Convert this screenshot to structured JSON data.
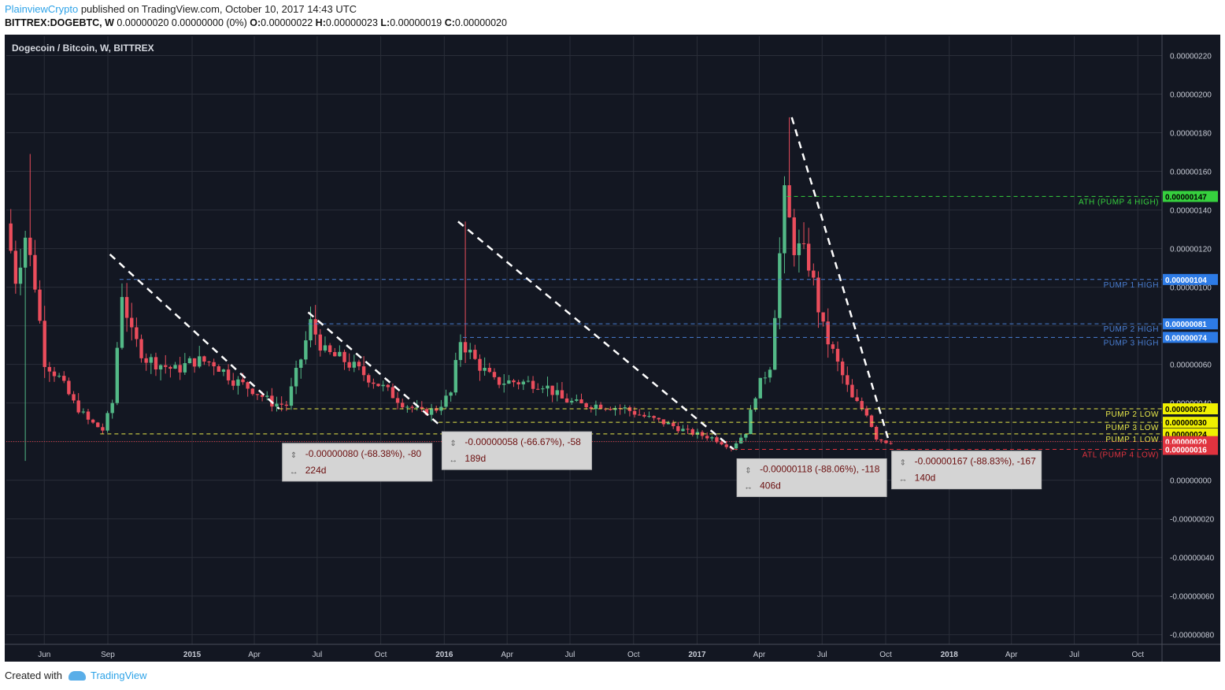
{
  "header": {
    "author": "PlainviewCrypto",
    "published_text": " published on TradingView.com, October 10, 2017 14:43 UTC",
    "symbol": "BITTREX:DOGEBTC, W",
    "last": " 0.00000020 0.00000000 (0%) ",
    "o_label": "O:",
    "o_value": "0.00000022",
    "h_label": " H:",
    "h_value": "0.00000023",
    "l_label": " L:",
    "l_value": "0.00000019",
    "c_label": " C:",
    "c_value": "0.00000020"
  },
  "footer": {
    "created_with": "Created with",
    "brand": "TradingView"
  },
  "colors": {
    "background": "#131722",
    "grid": "#2a2e39",
    "up": "#53b987",
    "down": "#eb4d5c",
    "blue_line": "#4a7fd4",
    "yellow_line": "#e8e84a",
    "green_line": "#36d13e",
    "red_line": "#e0333f"
  },
  "chart_data": {
    "type": "candlestick",
    "title": "Dogecoin / Bitcoin, W, BITTREX",
    "y_axis": {
      "range": [
        -8.5e-07,
        2.3e-06
      ],
      "ticks": [
        "0.00000220",
        "0.00000200",
        "0.00000180",
        "0.00000160",
        "0.00000140",
        "0.00000120",
        "0.00000100",
        "0.00000080",
        "0.00000060",
        "0.00000040",
        "0.00000020",
        "0.00000000",
        "-0.00000020",
        "-0.00000040",
        "-0.00000060",
        "-0.00000080"
      ],
      "tick_values": [
        2.2,
        2.0,
        1.8,
        1.6,
        1.4,
        1.2,
        1.0,
        0.8,
        0.6,
        0.4,
        0.2,
        0.0,
        -0.2,
        -0.4,
        -0.6,
        -0.8
      ],
      "unit_scale": "1e-6"
    },
    "x_axis": {
      "range": [
        "2014-04-07",
        "2018-11-05"
      ],
      "labels": [
        {
          "text": "Jun",
          "date": "2014-06-01",
          "bold": false
        },
        {
          "text": "Sep",
          "date": "2014-09-01",
          "bold": false
        },
        {
          "text": "2015",
          "date": "2015-01-01",
          "bold": true
        },
        {
          "text": "Apr",
          "date": "2015-04-01",
          "bold": false
        },
        {
          "text": "Jul",
          "date": "2015-07-01",
          "bold": false
        },
        {
          "text": "Oct",
          "date": "2015-10-01",
          "bold": false
        },
        {
          "text": "2016",
          "date": "2016-01-01",
          "bold": true
        },
        {
          "text": "Apr",
          "date": "2016-04-01",
          "bold": false
        },
        {
          "text": "Jul",
          "date": "2016-07-01",
          "bold": false
        },
        {
          "text": "Oct",
          "date": "2016-10-01",
          "bold": false
        },
        {
          "text": "2017",
          "date": "2017-01-01",
          "bold": true
        },
        {
          "text": "Apr",
          "date": "2017-04-01",
          "bold": false
        },
        {
          "text": "Jul",
          "date": "2017-07-01",
          "bold": false
        },
        {
          "text": "Oct",
          "date": "2017-10-01",
          "bold": false
        },
        {
          "text": "2018",
          "date": "2018-01-01",
          "bold": true
        },
        {
          "text": "Apr",
          "date": "2018-04-01",
          "bold": false
        },
        {
          "text": "Jul",
          "date": "2018-07-01",
          "bold": false
        },
        {
          "text": "Oct",
          "date": "2018-10-01",
          "bold": false
        }
      ]
    },
    "price_path": [
      [
        "2014-04-10",
        1.33
      ],
      [
        "2014-04-24",
        1.05
      ],
      [
        "2014-05-08",
        1.27
      ],
      [
        "2014-05-22",
        1.02
      ],
      [
        "2014-06-05",
        0.62
      ],
      [
        "2014-06-26",
        0.53
      ],
      [
        "2014-07-17",
        0.4
      ],
      [
        "2014-08-07",
        0.31
      ],
      [
        "2014-08-28",
        0.26
      ],
      [
        "2014-09-11",
        0.4
      ],
      [
        "2014-09-25",
        0.98
      ],
      [
        "2014-10-09",
        0.75
      ],
      [
        "2014-10-30",
        0.63
      ],
      [
        "2014-11-20",
        0.6
      ],
      [
        "2014-12-11",
        0.57
      ],
      [
        "2015-01-08",
        0.62
      ],
      [
        "2015-02-05",
        0.61
      ],
      [
        "2015-03-05",
        0.52
      ],
      [
        "2015-04-02",
        0.47
      ],
      [
        "2015-04-30",
        0.4
      ],
      [
        "2015-05-21",
        0.39
      ],
      [
        "2015-06-11",
        0.63
      ],
      [
        "2015-06-25",
        0.81
      ],
      [
        "2015-07-16",
        0.66
      ],
      [
        "2015-08-13",
        0.62
      ],
      [
        "2015-09-10",
        0.55
      ],
      [
        "2015-10-08",
        0.48
      ],
      [
        "2015-11-05",
        0.4
      ],
      [
        "2015-12-03",
        0.35
      ],
      [
        "2015-12-24",
        0.37
      ],
      [
        "2016-01-14",
        0.45
      ],
      [
        "2016-01-28",
        0.73
      ],
      [
        "2016-02-18",
        0.62
      ],
      [
        "2016-03-17",
        0.51
      ],
      [
        "2016-04-14",
        0.51
      ],
      [
        "2016-05-26",
        0.5
      ],
      [
        "2016-06-23",
        0.42
      ],
      [
        "2016-07-21",
        0.39
      ],
      [
        "2016-08-18",
        0.39
      ],
      [
        "2016-09-22",
        0.37
      ],
      [
        "2016-10-20",
        0.33
      ],
      [
        "2016-11-24",
        0.29
      ],
      [
        "2016-12-22",
        0.25
      ],
      [
        "2017-01-26",
        0.22
      ],
      [
        "2017-02-23",
        0.17
      ],
      [
        "2017-03-16",
        0.25
      ],
      [
        "2017-03-30",
        0.45
      ],
      [
        "2017-04-20",
        0.6
      ],
      [
        "2017-05-11",
        1.45
      ],
      [
        "2017-05-25",
        1.22
      ],
      [
        "2017-06-15",
        1.13
      ],
      [
        "2017-07-06",
        0.78
      ],
      [
        "2017-07-27",
        0.6
      ],
      [
        "2017-08-17",
        0.42
      ],
      [
        "2017-09-07",
        0.35
      ],
      [
        "2017-09-21",
        0.22
      ],
      [
        "2017-10-05",
        0.2
      ]
    ],
    "trend_lines": [
      {
        "x1": "2014-09-04",
        "y1": 1.17,
        "x2": "2015-05-07",
        "y2": 0.37
      },
      {
        "x1": "2015-06-18",
        "y1": 0.87,
        "x2": "2015-12-24",
        "y2": 0.29
      },
      {
        "x1": "2016-01-21",
        "y1": 1.34,
        "x2": "2017-02-23",
        "y2": 0.16
      },
      {
        "x1": "2017-05-18",
        "y1": 1.88,
        "x2": "2017-10-05",
        "y2": 0.21
      }
    ],
    "levels": [
      {
        "value": 1.47,
        "tag": "0.00000147",
        "label": "ATH (PUMP 4 HIGH)",
        "color": "green",
        "from": "2017-05-11"
      },
      {
        "value": 1.04,
        "tag": "0.00000104",
        "label": "PUMP 1 HIGH",
        "color": "blue",
        "from": "2014-09-18"
      },
      {
        "value": 0.81,
        "tag": "0.00000081",
        "label": "PUMP 2 HIGH",
        "color": "blue",
        "from": "2015-06-18"
      },
      {
        "value": 0.74,
        "tag": "0.00000074",
        "label": "PUMP 3 HIGH",
        "color": "blue",
        "from": "2016-01-28"
      },
      {
        "value": 0.37,
        "tag": "0.00000037",
        "label": "PUMP 2 LOW",
        "color": "yellow",
        "from": "2015-05-07"
      },
      {
        "value": 0.3,
        "tag": "0.00000030",
        "label": "PUMP 3 LOW",
        "color": "yellow",
        "from": "2015-12-24"
      },
      {
        "value": 0.24,
        "tag": "0.00000024",
        "label": "PUMP 1 LOW",
        "color": "yellow",
        "from": "2014-08-21"
      },
      {
        "value": 0.2,
        "tag": "0.00000020",
        "label": "",
        "color": "red_current",
        "from": "2014-04-07"
      },
      {
        "value": 0.16,
        "tag": "0.00000016",
        "label": "ATL (PUMP 4 LOW)",
        "color": "red",
        "from": "2017-02-23"
      }
    ],
    "measurements": [
      {
        "change": "-0.00000080 (-68.38%), -80",
        "duration": "224d",
        "anchor": "2015-05-14"
      },
      {
        "change": "-0.00000058 (-66.67%), -58",
        "duration": "189d",
        "anchor": "2015-12-31"
      },
      {
        "change": "-0.00000118 (-88.06%), -118",
        "duration": "406d",
        "anchor": "2017-03-02"
      },
      {
        "change": "-0.00000167 (-88.83%), -167",
        "duration": "140d",
        "anchor": "2017-10-12"
      }
    ]
  }
}
